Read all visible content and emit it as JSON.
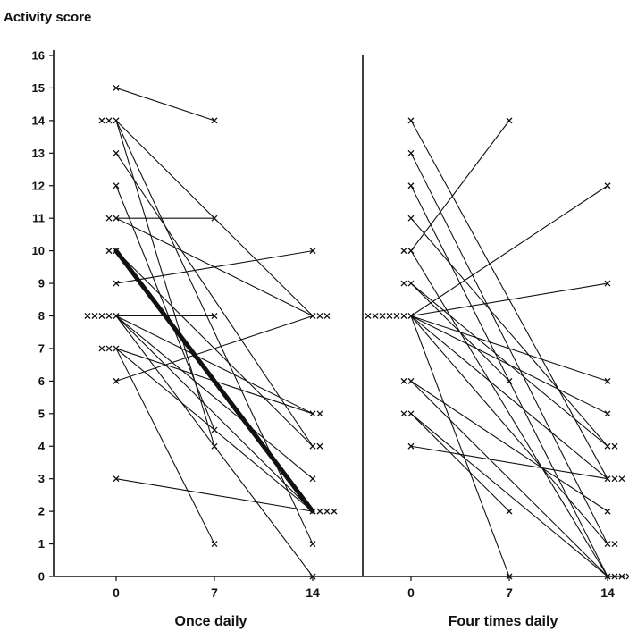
{
  "chart_data": {
    "type": "line",
    "ylabel": "Activity score",
    "y_ticks": [
      "0",
      "1",
      "2",
      "3",
      "4",
      "5",
      "6",
      "7",
      "8",
      "9",
      "10",
      "11",
      "12",
      "13",
      "14",
      "15",
      "16"
    ],
    "ylim": [
      0,
      16
    ],
    "x_ticks": [
      "0",
      "7",
      "14"
    ],
    "marker": "x",
    "grid": false,
    "line_color": "#111111",
    "panels": [
      {
        "label": "Once daily",
        "series": [
          {
            "x": [
              0,
              7
            ],
            "y": [
              15,
              14
            ]
          },
          {
            "x": [
              0,
              14
            ],
            "y": [
              14,
              8
            ]
          },
          {
            "x": [
              0,
              14
            ],
            "y": [
              14,
              1
            ]
          },
          {
            "x": [
              0,
              7
            ],
            "y": [
              14,
              4
            ]
          },
          {
            "x": [
              0,
              14
            ],
            "y": [
              13,
              4
            ]
          },
          {
            "x": [
              0,
              7
            ],
            "y": [
              12,
              4.5
            ]
          },
          {
            "x": [
              0,
              7
            ],
            "y": [
              11,
              11
            ]
          },
          {
            "x": [
              0,
              14
            ],
            "y": [
              11,
              8
            ]
          },
          {
            "x": [
              0,
              14
            ],
            "y": [
              10,
              2
            ],
            "emphasis": true
          },
          {
            "x": [
              0,
              14
            ],
            "y": [
              10,
              4
            ]
          },
          {
            "x": [
              0,
              14
            ],
            "y": [
              9,
              10
            ]
          },
          {
            "x": [
              0,
              14
            ],
            "y": [
              8,
              5
            ]
          },
          {
            "x": [
              0,
              14
            ],
            "y": [
              8,
              3
            ]
          },
          {
            "x": [
              0,
              14
            ],
            "y": [
              8,
              0
            ]
          },
          {
            "x": [
              0,
              7
            ],
            "y": [
              8,
              8
            ]
          },
          {
            "x": [
              0,
              14
            ],
            "y": [
              8,
              2
            ]
          },
          {
            "x": [
              0,
              14
            ],
            "y": [
              7,
              2
            ]
          },
          {
            "x": [
              0,
              14
            ],
            "y": [
              7,
              5
            ]
          },
          {
            "x": [
              0,
              14
            ],
            "y": [
              6,
              8
            ]
          },
          {
            "x": [
              0,
              7
            ],
            "y": [
              7,
              1
            ]
          },
          {
            "x": [
              0,
              14
            ],
            "y": [
              3,
              2
            ]
          }
        ]
      },
      {
        "label": "Four times daily",
        "series": [
          {
            "x": [
              0,
              14
            ],
            "y": [
              14,
              3
            ]
          },
          {
            "x": [
              0,
              14
            ],
            "y": [
              13,
              1
            ]
          },
          {
            "x": [
              0,
              14
            ],
            "y": [
              12,
              0
            ]
          },
          {
            "x": [
              0,
              14
            ],
            "y": [
              11,
              4
            ]
          },
          {
            "x": [
              0,
              7
            ],
            "y": [
              10,
              14
            ]
          },
          {
            "x": [
              0,
              14
            ],
            "y": [
              10,
              0
            ]
          },
          {
            "x": [
              0,
              14
            ],
            "y": [
              9,
              4
            ]
          },
          {
            "x": [
              0,
              7
            ],
            "y": [
              9,
              6
            ]
          },
          {
            "x": [
              0,
              14
            ],
            "y": [
              8,
              12
            ]
          },
          {
            "x": [
              0,
              14
            ],
            "y": [
              8,
              9
            ]
          },
          {
            "x": [
              0,
              14
            ],
            "y": [
              8,
              6
            ]
          },
          {
            "x": [
              0,
              14
            ],
            "y": [
              8,
              5
            ]
          },
          {
            "x": [
              0,
              14
            ],
            "y": [
              8,
              3
            ]
          },
          {
            "x": [
              0,
              7
            ],
            "y": [
              8,
              0
            ]
          },
          {
            "x": [
              0,
              14
            ],
            "y": [
              8,
              1
            ]
          },
          {
            "x": [
              0,
              14
            ],
            "y": [
              6,
              2
            ]
          },
          {
            "x": [
              0,
              14
            ],
            "y": [
              6,
              0
            ]
          },
          {
            "x": [
              0,
              7
            ],
            "y": [
              5,
              2
            ]
          },
          {
            "x": [
              0,
              14
            ],
            "y": [
              5,
              0
            ]
          },
          {
            "x": [
              0,
              14
            ],
            "y": [
              4,
              3
            ]
          }
        ]
      }
    ]
  }
}
